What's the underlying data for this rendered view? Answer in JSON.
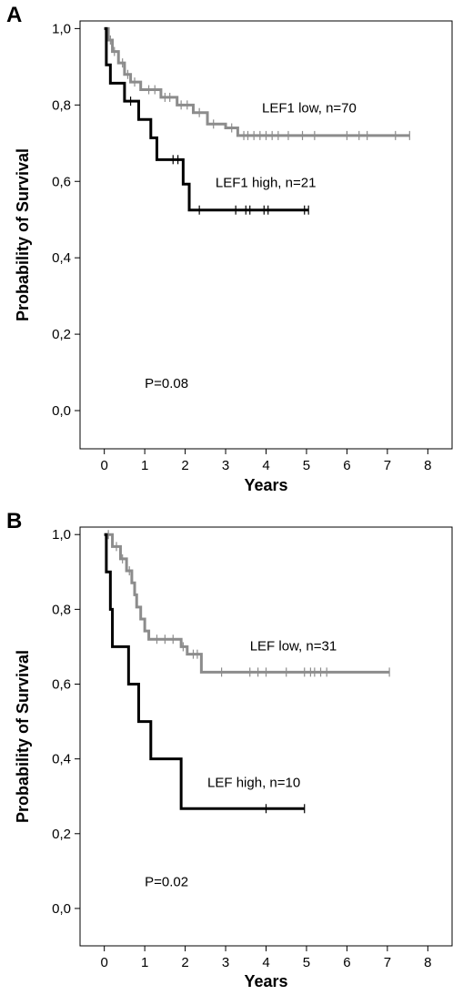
{
  "chart_data": [
    {
      "type": "line",
      "panel_label": "A",
      "xlabel": "Years",
      "ylabel": "Probability of Survival",
      "xlim": [
        -0.6,
        8.6
      ],
      "ylim": [
        -0.1,
        1.02
      ],
      "x_ticks": [
        0,
        1,
        2,
        3,
        4,
        5,
        6,
        7,
        8
      ],
      "x_tick_labels": [
        "0",
        "1",
        "2",
        "3",
        "4",
        "5",
        "6",
        "7",
        "8"
      ],
      "y_ticks": [
        0.0,
        0.2,
        0.4,
        0.6,
        0.8,
        1.0
      ],
      "y_tick_labels": [
        "0,0",
        "0,2",
        "0,4",
        "0,6",
        "0,8",
        "1,0"
      ],
      "grid": false,
      "annotations": [
        {
          "text": "P=0.08",
          "x": 1.0,
          "y": 0.06
        },
        {
          "text": "LEF1 low, n=70",
          "x": 3.9,
          "y": 0.78
        },
        {
          "text": "LEF1 high, n=21",
          "x": 2.75,
          "y": 0.585
        }
      ],
      "series": [
        {
          "name": "LEF1 low, n=70",
          "color": "#8c8c8c",
          "steps": [
            [
              0,
              1.0
            ],
            [
              0.1,
              0.97
            ],
            [
              0.2,
              0.94
            ],
            [
              0.35,
              0.91
            ],
            [
              0.5,
              0.88
            ],
            [
              0.65,
              0.86
            ],
            [
              0.9,
              0.84
            ],
            [
              1.4,
              0.82
            ],
            [
              1.8,
              0.8
            ],
            [
              2.2,
              0.78
            ],
            [
              2.55,
              0.75
            ],
            [
              3.0,
              0.74
            ],
            [
              3.3,
              0.72
            ],
            [
              7.55,
              0.72
            ]
          ],
          "censored": [
            [
              0.15,
              0.97
            ],
            [
              0.25,
              0.94
            ],
            [
              0.45,
              0.91
            ],
            [
              0.58,
              0.88
            ],
            [
              0.75,
              0.86
            ],
            [
              1.1,
              0.84
            ],
            [
              1.25,
              0.84
            ],
            [
              1.5,
              0.82
            ],
            [
              1.62,
              0.82
            ],
            [
              1.9,
              0.8
            ],
            [
              2.05,
              0.8
            ],
            [
              2.35,
              0.78
            ],
            [
              2.7,
              0.75
            ],
            [
              3.15,
              0.74
            ],
            [
              3.45,
              0.72
            ],
            [
              3.55,
              0.72
            ],
            [
              3.7,
              0.72
            ],
            [
              3.85,
              0.72
            ],
            [
              4.0,
              0.72
            ],
            [
              4.15,
              0.72
            ],
            [
              4.3,
              0.72
            ],
            [
              4.55,
              0.72
            ],
            [
              4.9,
              0.72
            ],
            [
              5.2,
              0.72
            ],
            [
              6.0,
              0.72
            ],
            [
              6.3,
              0.72
            ],
            [
              6.5,
              0.72
            ],
            [
              7.2,
              0.72
            ],
            [
              7.55,
              0.72
            ]
          ]
        },
        {
          "name": "LEF1 high, n=21",
          "color": "#000000",
          "steps": [
            [
              0,
              1.0
            ],
            [
              0.05,
              0.905
            ],
            [
              0.15,
              0.857
            ],
            [
              0.5,
              0.81
            ],
            [
              0.85,
              0.762
            ],
            [
              1.15,
              0.714
            ],
            [
              1.3,
              0.657
            ],
            [
              1.95,
              0.593
            ],
            [
              2.1,
              0.525
            ],
            [
              5.05,
              0.525
            ]
          ],
          "censored": [
            [
              0.65,
              0.81
            ],
            [
              1.7,
              0.657
            ],
            [
              1.82,
              0.657
            ],
            [
              2.35,
              0.525
            ],
            [
              3.25,
              0.525
            ],
            [
              3.5,
              0.525
            ],
            [
              3.6,
              0.525
            ],
            [
              3.95,
              0.525
            ],
            [
              4.05,
              0.525
            ],
            [
              4.95,
              0.525
            ],
            [
              5.05,
              0.525
            ]
          ]
        }
      ]
    },
    {
      "type": "line",
      "panel_label": "B",
      "xlabel": "Years",
      "ylabel": "Probability of Survival",
      "xlim": [
        -0.6,
        8.6
      ],
      "ylim": [
        -0.1,
        1.02
      ],
      "x_ticks": [
        0,
        1,
        2,
        3,
        4,
        5,
        6,
        7,
        8
      ],
      "x_tick_labels": [
        "0",
        "1",
        "2",
        "3",
        "4",
        "5",
        "6",
        "7",
        "8"
      ],
      "y_ticks": [
        0.0,
        0.2,
        0.4,
        0.6,
        0.8,
        1.0
      ],
      "y_tick_labels": [
        "0,0",
        "0,2",
        "0,4",
        "0,6",
        "0,8",
        "1,0"
      ],
      "grid": false,
      "annotations": [
        {
          "text": "P=0.02",
          "x": 1.0,
          "y": 0.06
        },
        {
          "text": "LEF low, n=31",
          "x": 3.6,
          "y": 0.69
        },
        {
          "text": "LEF high, n=10",
          "x": 2.55,
          "y": 0.325
        }
      ],
      "series": [
        {
          "name": "LEF low, n=31",
          "color": "#8c8c8c",
          "steps": [
            [
              0,
              1.0
            ],
            [
              0.2,
              0.968
            ],
            [
              0.4,
              0.935
            ],
            [
              0.55,
              0.903
            ],
            [
              0.68,
              0.871
            ],
            [
              0.75,
              0.839
            ],
            [
              0.8,
              0.806
            ],
            [
              0.9,
              0.774
            ],
            [
              1.0,
              0.742
            ],
            [
              1.1,
              0.72
            ],
            [
              1.9,
              0.7
            ],
            [
              2.05,
              0.68
            ],
            [
              2.4,
              0.632
            ],
            [
              7.05,
              0.632
            ]
          ],
          "censored": [
            [
              0.1,
              1.0
            ],
            [
              0.3,
              0.968
            ],
            [
              0.45,
              0.935
            ],
            [
              0.62,
              0.903
            ],
            [
              1.3,
              0.72
            ],
            [
              1.5,
              0.72
            ],
            [
              1.7,
              0.72
            ],
            [
              1.95,
              0.7
            ],
            [
              2.2,
              0.68
            ],
            [
              2.3,
              0.68
            ],
            [
              2.9,
              0.632
            ],
            [
              3.6,
              0.632
            ],
            [
              3.8,
              0.632
            ],
            [
              4.0,
              0.632
            ],
            [
              4.5,
              0.632
            ],
            [
              4.95,
              0.632
            ],
            [
              5.1,
              0.632
            ],
            [
              5.2,
              0.632
            ],
            [
              5.35,
              0.632
            ],
            [
              5.5,
              0.632
            ],
            [
              7.05,
              0.632
            ]
          ]
        },
        {
          "name": "LEF high, n=10",
          "color": "#000000",
          "steps": [
            [
              0,
              1.0
            ],
            [
              0.05,
              0.9
            ],
            [
              0.15,
              0.8
            ],
            [
              0.2,
              0.7
            ],
            [
              0.6,
              0.6
            ],
            [
              0.85,
              0.5
            ],
            [
              1.15,
              0.4
            ],
            [
              1.9,
              0.267
            ],
            [
              4.95,
              0.267
            ]
          ],
          "censored": [
            [
              4.0,
              0.267
            ],
            [
              4.95,
              0.267
            ]
          ]
        }
      ]
    }
  ]
}
